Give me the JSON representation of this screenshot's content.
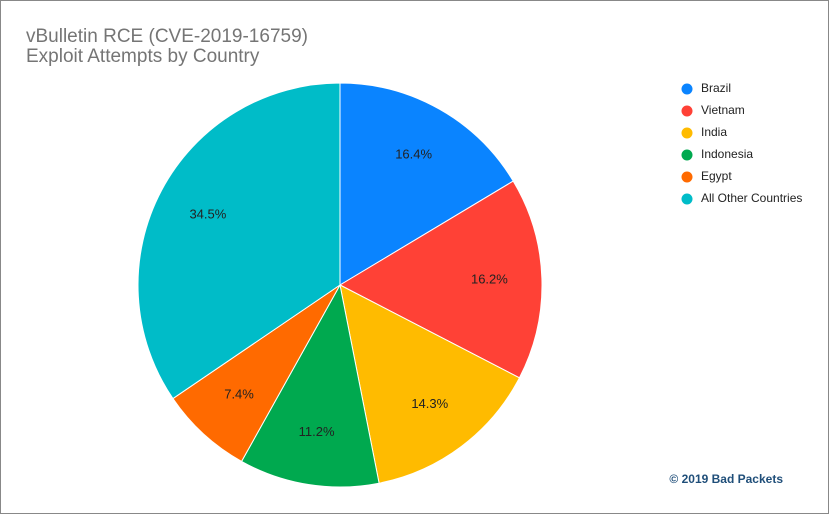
{
  "chart_data": {
    "type": "pie",
    "title": "vBulletin RCE (CVE-2019-16759)",
    "subtitle": "Exploit Attempts by Country",
    "categories": [
      "Brazil",
      "Vietnam",
      "India",
      "Indonesia",
      "Egypt",
      "All Other Countries"
    ],
    "values": [
      16.4,
      16.2,
      14.3,
      11.2,
      7.4,
      34.5
    ],
    "value_labels": [
      "16.4%",
      "16.2%",
      "14.3%",
      "11.2%",
      "7.4%",
      "34.5%"
    ],
    "colors": [
      "#0a84ff",
      "#ff4136",
      "#ffbb00",
      "#00a94f",
      "#ff6a00",
      "#00bcc8"
    ],
    "legend": "right",
    "annotation": "© 2019 Bad Packets"
  }
}
